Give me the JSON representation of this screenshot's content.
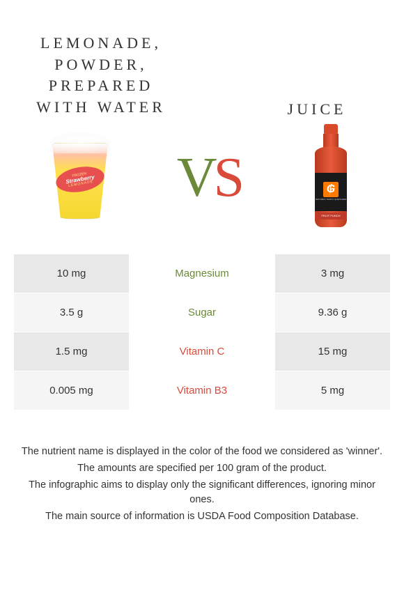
{
  "header": {
    "left_title": "LEMONADE, POWDER, PREPARED WITH WATER",
    "right_title": "JUICE",
    "vs_v": "V",
    "vs_s": "S",
    "colors": {
      "left": "#6a8a3a",
      "right": "#d94a3a"
    }
  },
  "left_image": {
    "label_line1": "FROZEN",
    "label_line2": "Strawberry",
    "label_line3": "LEMONADE"
  },
  "right_image": {
    "logo_letter": "G",
    "tagline": "NATURE'S THIRST QUENCHER",
    "flavor": "FRUIT PUNCH"
  },
  "comparison": {
    "type": "table",
    "winner_colors": {
      "left": "#6a8a3a",
      "right": "#d94a3a"
    },
    "row_bg_odd": "#e8e8e8",
    "row_bg_even": "#f5f5f5",
    "text_color": "#333333",
    "fontsize": 15,
    "rows": [
      {
        "left": "10 mg",
        "label": "Magnesium",
        "right": "3 mg",
        "winner": "left"
      },
      {
        "left": "3.5 g",
        "label": "Sugar",
        "right": "9.36 g",
        "winner": "left"
      },
      {
        "left": "1.5 mg",
        "label": "Vitamin C",
        "right": "15 mg",
        "winner": "right"
      },
      {
        "left": "0.005 mg",
        "label": "Vitamin B3",
        "right": "5 mg",
        "winner": "right"
      }
    ]
  },
  "footnotes": {
    "lines": [
      "The nutrient name is displayed in the color of the food we considered as 'winner'.",
      "The amounts are specified per 100 gram of the product.",
      "The infographic aims to display only the significant differences, ignoring minor ones.",
      "The main source of information is USDA Food Composition Database."
    ],
    "fontsize": 14.5,
    "color": "#333333"
  }
}
